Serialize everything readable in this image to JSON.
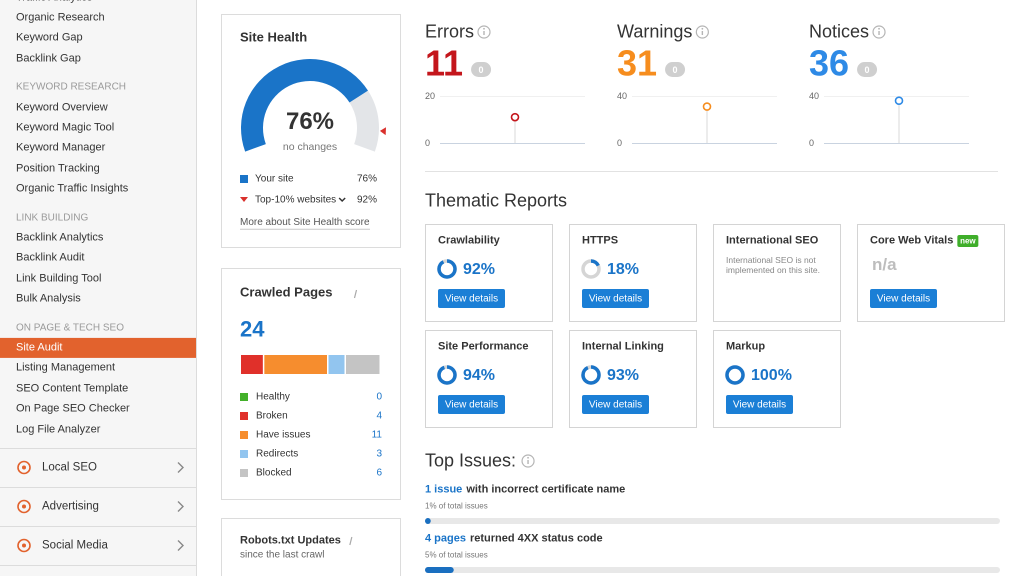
{
  "sidebar": {
    "groups": [
      {
        "items": [
          "Traffic Analytics",
          "Organic Research",
          "Keyword Gap",
          "Backlink Gap"
        ]
      },
      {
        "heading": "KEYWORD RESEARCH",
        "items": [
          "Keyword Overview",
          "Keyword Magic Tool",
          "Keyword Manager",
          "Position Tracking",
          "Organic Traffic Insights"
        ]
      },
      {
        "heading": "LINK BUILDING",
        "items": [
          "Backlink Analytics",
          "Backlink Audit",
          "Link Building Tool",
          "Bulk Analysis"
        ]
      },
      {
        "heading": "ON PAGE & TECH SEO",
        "items": [
          "Site Audit",
          "Listing Management",
          "SEO Content Template",
          "On Page SEO Checker",
          "Log File Analyzer"
        ],
        "active": 0
      }
    ],
    "menus": [
      "Local SEO",
      "Advertising",
      "Social Media"
    ]
  },
  "site_health": {
    "title": "Site Health",
    "score": {
      "value": 76,
      "label": "76%"
    },
    "change": "no changes",
    "legend": [
      {
        "name": "Your site",
        "value": {
          "value": 76,
          "label": "76%"
        },
        "color": "#1a74c8"
      },
      {
        "name": "Top-10% websites",
        "value": {
          "value": 92,
          "label": "92%"
        },
        "color": "#d9302c"
      }
    ],
    "link": "More about Site Health score"
  },
  "crawled_pages": {
    "title": "Crawled Pages",
    "total": 24,
    "breakdown": [
      {
        "name": "Healthy",
        "count": 0,
        "color": "#43b02a"
      },
      {
        "name": "Broken",
        "count": 4,
        "color": "#e0302a"
      },
      {
        "name": "Have issues",
        "count": 11,
        "color": "#f68d2e"
      },
      {
        "name": "Redirects",
        "count": 3,
        "color": "#92c5ef"
      },
      {
        "name": "Blocked",
        "count": 6,
        "color": "#c4c4c4"
      }
    ]
  },
  "robots": {
    "title": "Robots.txt Updates",
    "subtitle": "since the last crawl"
  },
  "summary": [
    {
      "label": "Errors",
      "count": 11,
      "change": 0,
      "color": "#c4161c",
      "ylim": [
        0,
        20
      ],
      "yticks": [
        0,
        20
      ]
    },
    {
      "label": "Warnings",
      "count": 31,
      "change": 0,
      "color": "#f68d1e",
      "ylim": [
        0,
        40
      ],
      "yticks": [
        0,
        40
      ]
    },
    {
      "label": "Notices",
      "count": 36,
      "change": 0,
      "color": "#2e8ae6",
      "ylim": [
        0,
        40
      ],
      "yticks": [
        0,
        40
      ]
    }
  ],
  "thematic": {
    "title": "Thematic Reports",
    "button": "View details",
    "reports": [
      {
        "name": "Crawlability",
        "score": {
          "value": 92,
          "label": "92%"
        }
      },
      {
        "name": "HTTPS",
        "score": {
          "value": 18,
          "label": "18%"
        }
      },
      {
        "name": "International SEO",
        "note": "International SEO is not implemented on this site."
      },
      {
        "name": "Core Web Vitals",
        "badge": "new",
        "score_text": "n/a"
      },
      {
        "name": "Site Performance",
        "score": {
          "value": 94,
          "label": "94%"
        }
      },
      {
        "name": "Internal Linking",
        "score": {
          "value": 93,
          "label": "93%"
        }
      },
      {
        "name": "Markup",
        "score": {
          "value": 100,
          "label": "100%"
        }
      }
    ]
  },
  "top_issues": {
    "title": "Top Issues:",
    "items": [
      {
        "count_label": "1 issue",
        "text": "with incorrect certificate name",
        "share": {
          "value": 1,
          "label": "1% of total issues"
        }
      },
      {
        "count_label": "4 pages",
        "text": "returned 4XX status code",
        "share": {
          "value": 5,
          "label": "5% of total issues"
        }
      }
    ]
  }
}
